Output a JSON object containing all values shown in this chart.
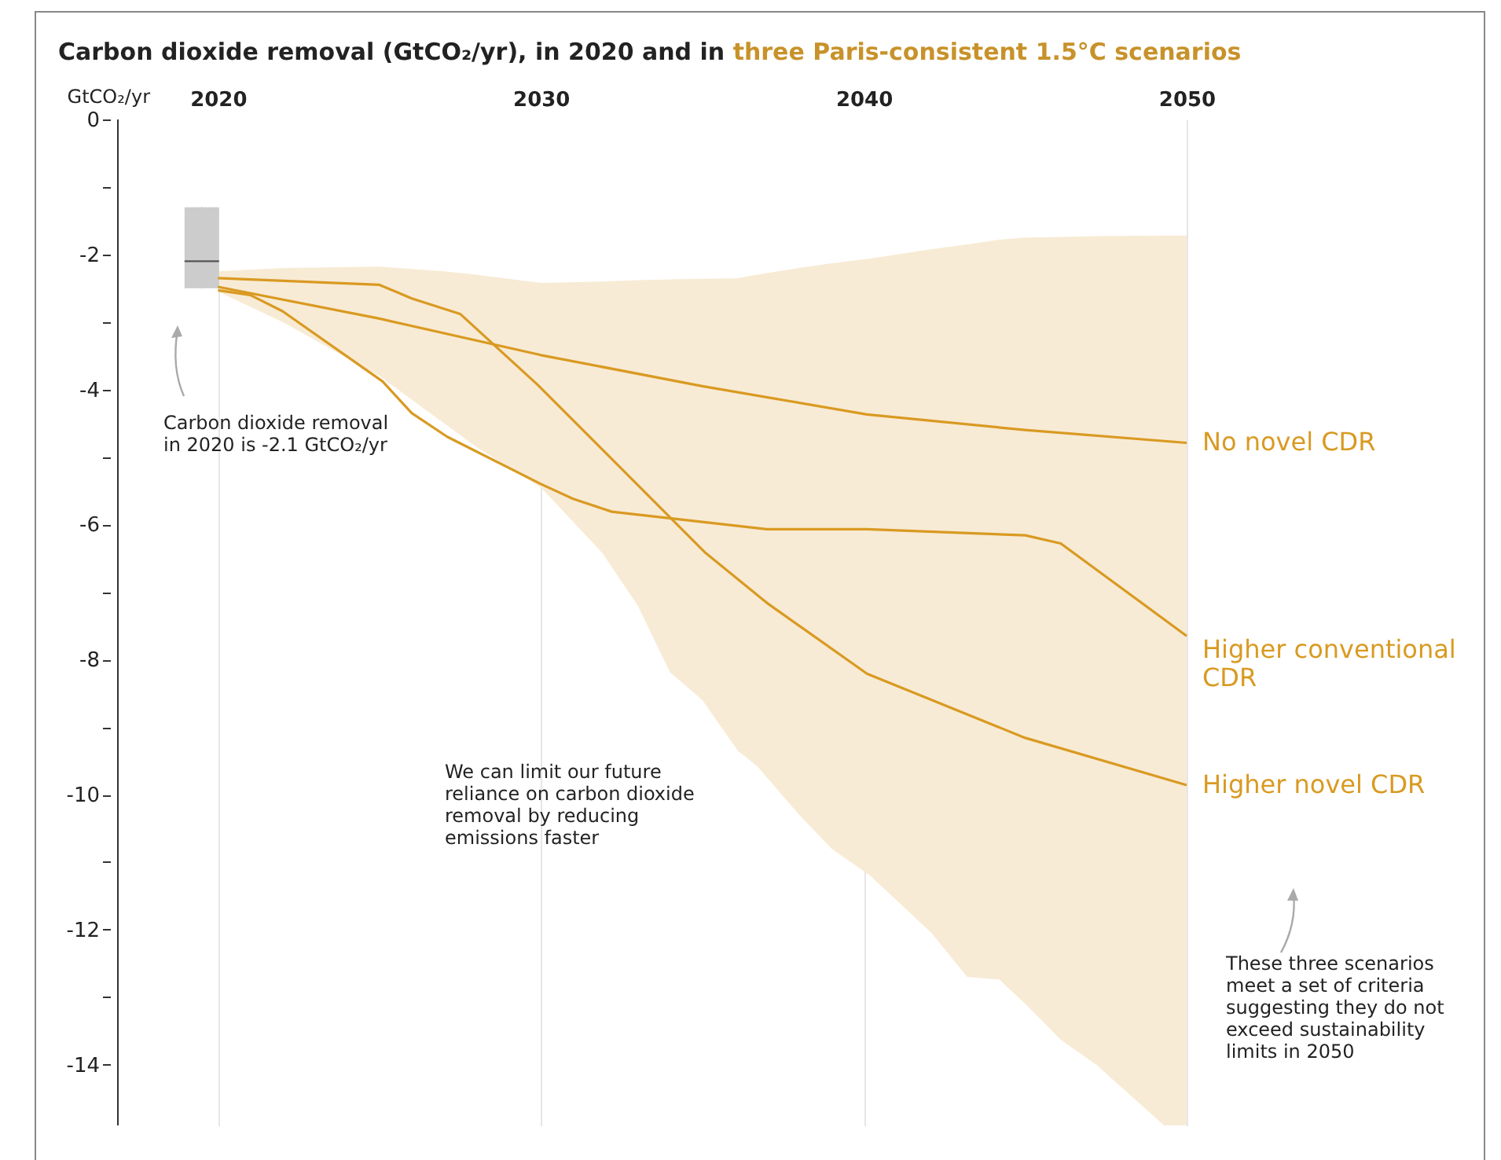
{
  "chart_data": {
    "type": "line",
    "title": "Carbon dioxide removal (GtCO₂/yr), in 2020 and in",
    "subtitle": "three Paris-consistent 1.5°C scenarios",
    "ylabel": "GtCO₂/yr",
    "xlim": [
      2016.9,
      2050
    ],
    "xticks": [
      2020,
      2030,
      2040,
      2050
    ],
    "ylim": [
      -14.9,
      0
    ],
    "yticks": [
      0,
      {
        "value": -1,
        "label": null
      },
      -2,
      {
        "value": -3,
        "label": null
      },
      -4,
      {
        "value": -5,
        "label": null
      },
      -6,
      {
        "value": -7,
        "label": null
      },
      -8,
      {
        "value": -9,
        "label": null
      },
      -10,
      {
        "value": -11,
        "label": null
      },
      -12,
      {
        "value": -13,
        "label": null
      },
      -14
    ],
    "grid": "x",
    "legend": false,
    "stacked": true,
    "marker": "none",
    "line_style": "solid",
    "series": [
      {
        "type": "area",
        "color": "#ffffff",
        "x": [
          2020,
          2022,
          2025,
          2027,
          2028,
          2030,
          2031.9,
          2033,
          2034,
          2035,
          2036.1,
          2036.7,
          2038,
          2039,
          2040.2,
          2042.1,
          2043.2,
          2044.2,
          2045,
          2046.1,
          2047.2,
          2049.3,
          2050
        ],
        "values": [
          -2.25,
          -2.2,
          -2.18,
          -2.25,
          -2.3,
          -2.42,
          -2.4,
          -2.38,
          -2.37,
          -2.36,
          -2.35,
          -2.3,
          -2.2,
          -2.13,
          -2.06,
          -1.92,
          -1.85,
          -1.78,
          -1.75,
          -1.74,
          -1.73,
          -1.72,
          -1.72
        ]
      },
      {
        "type": "area",
        "color": "#f8ebd5",
        "x": [
          2020,
          2022,
          2025,
          2027,
          2028,
          2030,
          2031.9,
          2033,
          2034,
          2035,
          2036.1,
          2036.7,
          2038,
          2039,
          2040.2,
          2042.1,
          2043.2,
          2044.2,
          2045,
          2046.1,
          2047.2,
          2049.3,
          2050
        ],
        "values": [
          -0.3,
          -0.8,
          -1.62,
          -2.25,
          -2.55,
          -3.03,
          -4.02,
          -4.82,
          -5.82,
          -6.24,
          -7.0,
          -7.28,
          -8.1,
          -8.67,
          -9.14,
          -10.13,
          -10.85,
          -10.96,
          -11.35,
          -11.89,
          -12.27,
          -13.18,
          -13.18
        ]
      },
      {
        "type": "box",
        "color": "#cccccc",
        "x": [
          2019.5
        ],
        "boxes": [
          {
            "low": -2.5,
            "q1": -2.5,
            "median": -2.1,
            "q3": -1.3,
            "high": -1.3
          }
        ]
      },
      {
        "name": "No novel CDR",
        "color": "#d99a22",
        "x": [
          2020,
          2025,
          2030,
          2035,
          2040.1,
          2045,
          2050
        ],
        "values": [
          -2.48,
          -2.95,
          -3.49,
          -3.95,
          -4.37,
          -4.6,
          -4.79
        ]
      },
      {
        "name": "Higher conventional CDR",
        "color": "#d99a22",
        "x": [
          2020,
          2021,
          2022,
          2025.1,
          2026,
          2027.1,
          2030,
          2031,
          2032.2,
          2037,
          2040.1,
          2045,
          2046.1,
          2050
        ],
        "values": [
          -2.53,
          -2.6,
          -2.84,
          -3.88,
          -4.35,
          -4.7,
          -5.4,
          -5.62,
          -5.81,
          -6.07,
          -6.07,
          -6.16,
          -6.28,
          -7.65
        ]
      },
      {
        "name": "Higher novel CDR",
        "color": "#d99a22",
        "x": [
          2020,
          2025,
          2026,
          2027.5,
          2029.9,
          2035.1,
          2037,
          2040.1,
          2045,
          2050
        ],
        "values": [
          -2.35,
          -2.45,
          -2.65,
          -2.88,
          -3.93,
          -6.42,
          -7.16,
          -8.21,
          -9.16,
          -9.86
        ]
      }
    ],
    "annotations": [
      "Carbon dioxide removal in 2020 is -2.1 GtCO₂/yr",
      "We can limit our future reliance on carbon dioxide removal by reducing emissions faster",
      "These three scenarios meet a set of criteria suggesting they do not exceed sustainability limits in 2050"
    ]
  }
}
